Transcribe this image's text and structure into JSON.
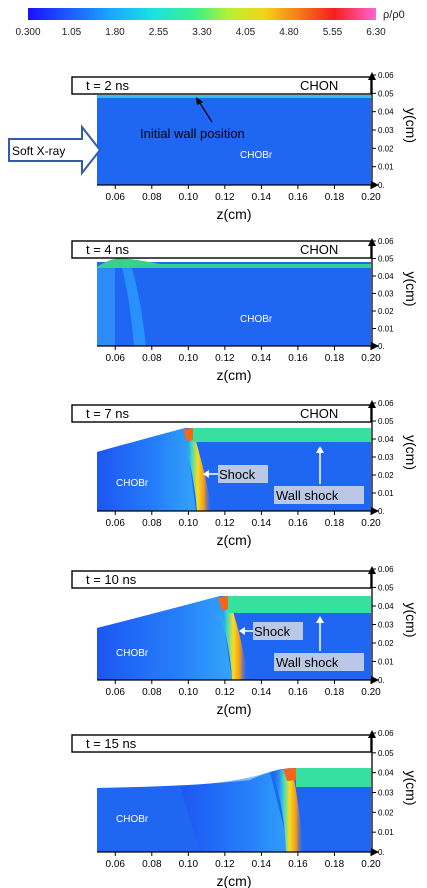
{
  "colorbar": {
    "label": "ρ/ρ0",
    "ticks": [
      "0.300",
      "1.05",
      "1.80",
      "2.55",
      "3.30",
      "4.05",
      "4.80",
      "5.55",
      "6.30"
    ],
    "colors": [
      "#1a10ff",
      "#1e5cff",
      "#1aa8ff",
      "#19e3e0",
      "#3cf08a",
      "#b8f030",
      "#f5d316",
      "#f57a1a",
      "#f51e1e",
      "#ff2a9a",
      "#ff66d2"
    ]
  },
  "axis": {
    "z_ticks": [
      "0.06",
      "0.08",
      "0.10",
      "0.12",
      "0.14",
      "0.16",
      "0.18",
      "0.20"
    ],
    "y_ticks": [
      "0.06",
      "0.05",
      "0.04",
      "0.03",
      "0.02",
      "0.01",
      "0."
    ],
    "z_label": "z(cm)",
    "y_label": "y(cm)"
  },
  "panels": [
    {
      "time": "t = 2 ns",
      "top_label": "CHON",
      "material": "CHOBr"
    },
    {
      "time": "t = 4 ns",
      "top_label": "CHON",
      "material": "CHOBr"
    },
    {
      "time": "t = 7 ns",
      "top_label": "CHON",
      "material": "CHOBr",
      "shock": "Shock",
      "wall_shock": "Wall shock"
    },
    {
      "time": "t = 10 ns",
      "top_label": "",
      "material": "CHOBr",
      "shock": "Shock",
      "wall_shock": "Wall shock"
    },
    {
      "time": "t = 15 ns",
      "top_label": "",
      "material": "CHOBr"
    }
  ],
  "annotations": {
    "initial_wall": "Initial wall position",
    "soft_xray": "Soft X-ray"
  }
}
